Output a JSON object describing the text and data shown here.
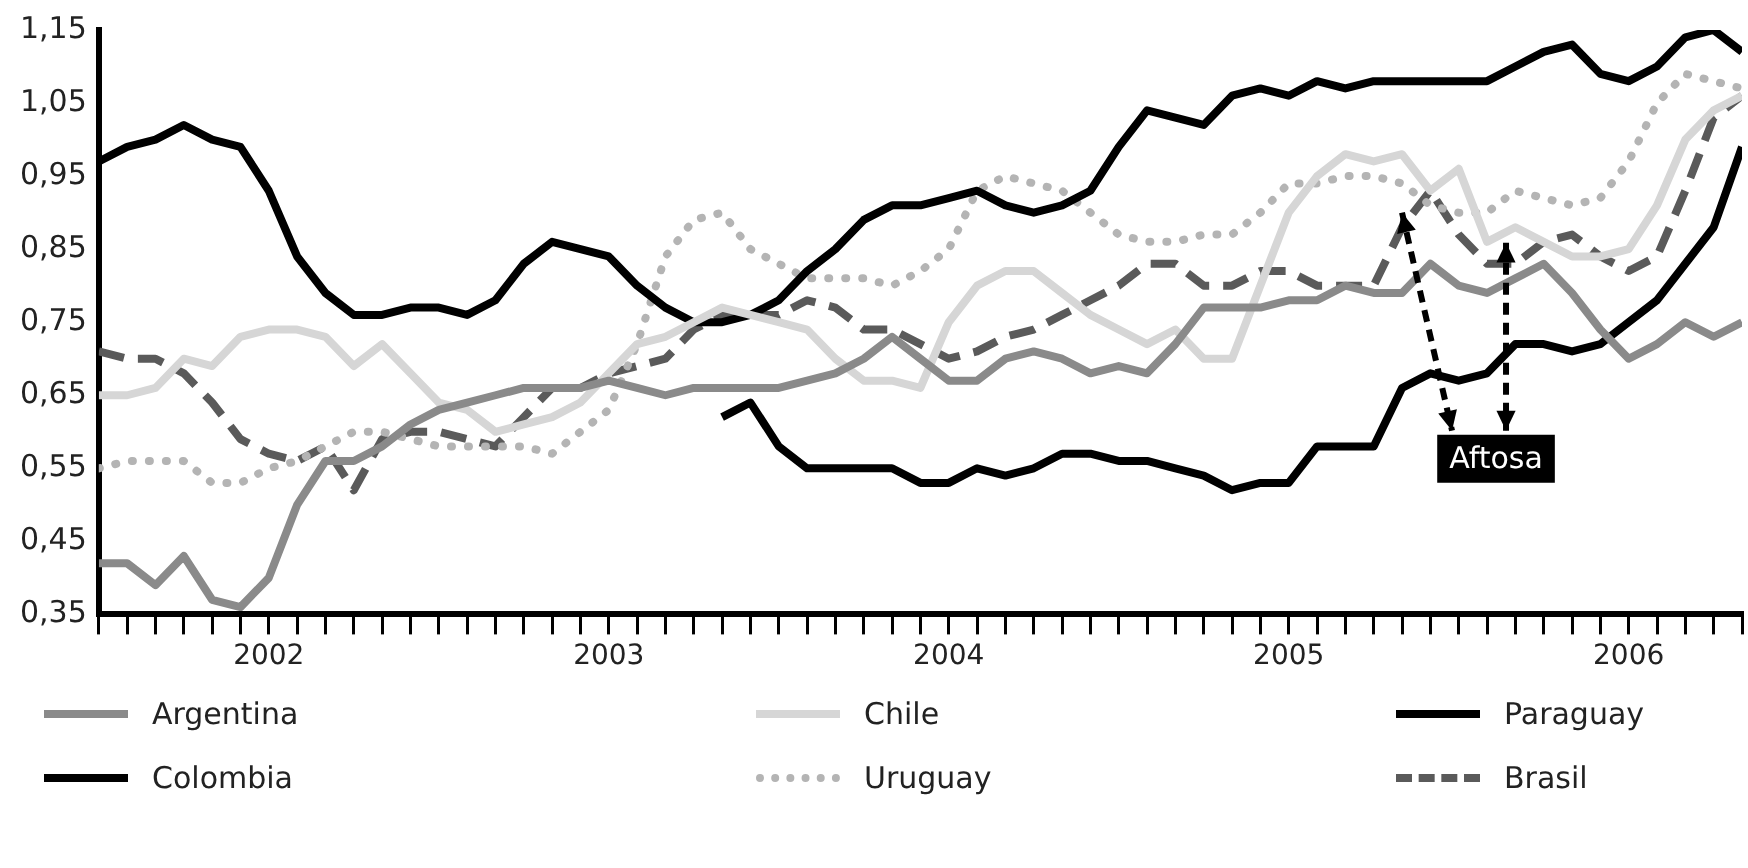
{
  "chart_data": {
    "type": "line",
    "x": [
      "2002-01",
      "2002-02",
      "2002-03",
      "2002-04",
      "2002-05",
      "2002-06",
      "2002-07",
      "2002-08",
      "2002-09",
      "2002-10",
      "2002-11",
      "2002-12",
      "2003-01",
      "2003-02",
      "2003-03",
      "2003-04",
      "2003-05",
      "2003-06",
      "2003-07",
      "2003-08",
      "2003-09",
      "2003-10",
      "2003-11",
      "2003-12",
      "2004-01",
      "2004-02",
      "2004-03",
      "2004-04",
      "2004-05",
      "2004-06",
      "2004-07",
      "2004-08",
      "2004-09",
      "2004-10",
      "2004-11",
      "2004-12",
      "2005-01",
      "2005-02",
      "2005-03",
      "2005-04",
      "2005-05",
      "2005-06",
      "2005-07",
      "2005-08",
      "2005-09",
      "2005-10",
      "2005-11",
      "2005-12",
      "2006-01",
      "2006-02",
      "2006-03",
      "2006-04",
      "2006-05",
      "2006-06",
      "2006-07",
      "2006-08",
      "2006-09",
      "2006-10",
      "2006-11"
    ],
    "series": [
      {
        "name": "Argentina",
        "color": "#8a8a8a",
        "line_style": "solid",
        "values": [
          0.42,
          0.42,
          0.39,
          0.43,
          0.37,
          0.36,
          0.4,
          0.5,
          0.56,
          0.56,
          0.58,
          0.61,
          0.63,
          0.64,
          0.65,
          0.66,
          0.66,
          0.66,
          0.67,
          0.66,
          0.65,
          0.66,
          0.66,
          0.66,
          0.66,
          0.67,
          0.68,
          0.7,
          0.73,
          0.7,
          0.67,
          0.67,
          0.7,
          0.71,
          0.7,
          0.68,
          0.69,
          0.68,
          0.72,
          0.77,
          0.77,
          0.77,
          0.78,
          0.78,
          0.8,
          0.79,
          0.79,
          0.83,
          0.8,
          0.79,
          0.81,
          0.83,
          0.79,
          0.74,
          0.7,
          0.72,
          0.75,
          0.73,
          0.75
        ]
      },
      {
        "name": "Chile",
        "color": "#d6d6d6",
        "line_style": "solid",
        "values": [
          0.65,
          0.65,
          0.66,
          0.7,
          0.69,
          0.73,
          0.74,
          0.74,
          0.73,
          0.69,
          0.72,
          0.68,
          0.64,
          0.63,
          0.6,
          0.61,
          0.62,
          0.64,
          0.68,
          0.72,
          0.73,
          0.75,
          0.77,
          0.76,
          0.75,
          0.74,
          0.7,
          0.67,
          0.67,
          0.66,
          0.75,
          0.8,
          0.82,
          0.82,
          0.79,
          0.76,
          0.74,
          0.72,
          0.74,
          0.7,
          0.7,
          0.8,
          0.9,
          0.95,
          0.98,
          0.97,
          0.98,
          0.93,
          0.96,
          0.86,
          0.88,
          0.86,
          0.84,
          0.84,
          0.85,
          0.91,
          1.0,
          1.04,
          1.06
        ]
      },
      {
        "name": "Paraguay",
        "color": "#000000",
        "line_style": "solid",
        "x": [
          "2003-11",
          "2003-12",
          "2004-01",
          "2004-02",
          "2004-03",
          "2004-04",
          "2004-05",
          "2004-06",
          "2004-07",
          "2004-08",
          "2004-09",
          "2004-10",
          "2004-11",
          "2004-12",
          "2005-01",
          "2005-02",
          "2005-03",
          "2005-04",
          "2005-05",
          "2005-06",
          "2005-07",
          "2005-08",
          "2005-09",
          "2005-10",
          "2005-11",
          "2005-12",
          "2006-01",
          "2006-02",
          "2006-03",
          "2006-04",
          "2006-05",
          "2006-06",
          "2006-07",
          "2006-08",
          "2006-09",
          "2006-10",
          "2006-11"
        ],
        "values": [
          0.62,
          0.64,
          0.58,
          0.55,
          0.55,
          0.55,
          0.55,
          0.53,
          0.53,
          0.55,
          0.54,
          0.55,
          0.57,
          0.57,
          0.56,
          0.56,
          0.55,
          0.54,
          0.52,
          0.53,
          0.53,
          0.58,
          0.58,
          0.58,
          0.66,
          0.68,
          0.67,
          0.68,
          0.72,
          0.72,
          0.71,
          0.72,
          0.75,
          0.78,
          0.83,
          0.88,
          0.99
        ]
      },
      {
        "name": "Colombia",
        "color": "#000000",
        "line_style": "solid",
        "values": [
          0.97,
          0.99,
          1.0,
          1.02,
          1.0,
          0.99,
          0.93,
          0.84,
          0.79,
          0.76,
          0.76,
          0.77,
          0.77,
          0.76,
          0.78,
          0.83,
          0.86,
          0.85,
          0.84,
          0.8,
          0.77,
          0.75,
          0.75,
          0.76,
          0.78,
          0.82,
          0.85,
          0.89,
          0.91,
          0.91,
          0.92,
          0.93,
          0.91,
          0.9,
          0.91,
          0.93,
          0.99,
          1.04,
          1.03,
          1.02,
          1.06,
          1.07,
          1.06,
          1.08,
          1.07,
          1.08,
          1.08,
          1.08,
          1.08,
          1.08,
          1.1,
          1.12,
          1.13,
          1.09,
          1.08,
          1.1,
          1.14,
          1.15,
          1.12
        ]
      },
      {
        "name": "Uruguay",
        "color": "#b4b4b4",
        "line_style": "dotted",
        "values": [
          0.55,
          0.56,
          0.56,
          0.56,
          0.53,
          0.53,
          0.55,
          0.56,
          0.58,
          0.6,
          0.6,
          0.59,
          0.58,
          0.58,
          0.58,
          0.58,
          0.57,
          0.6,
          0.63,
          0.72,
          0.84,
          0.89,
          0.9,
          0.85,
          0.83,
          0.81,
          0.81,
          0.81,
          0.8,
          0.82,
          0.85,
          0.93,
          0.95,
          0.94,
          0.93,
          0.9,
          0.87,
          0.86,
          0.86,
          0.87,
          0.87,
          0.9,
          0.94,
          0.94,
          0.95,
          0.95,
          0.94,
          0.91,
          0.9,
          0.9,
          0.93,
          0.92,
          0.91,
          0.92,
          0.97,
          1.05,
          1.09,
          1.08,
          1.07
        ]
      },
      {
        "name": "Brasil",
        "color": "#5a5a5a",
        "line_style": "dashed",
        "values": [
          0.71,
          0.7,
          0.7,
          0.68,
          0.64,
          0.59,
          0.57,
          0.56,
          0.58,
          0.52,
          0.59,
          0.6,
          0.6,
          0.59,
          0.58,
          0.62,
          0.66,
          0.66,
          0.68,
          0.69,
          0.7,
          0.74,
          0.76,
          0.76,
          0.76,
          0.78,
          0.77,
          0.74,
          0.74,
          0.72,
          0.7,
          0.71,
          0.73,
          0.74,
          0.76,
          0.78,
          0.8,
          0.83,
          0.83,
          0.8,
          0.8,
          0.82,
          0.82,
          0.8,
          0.8,
          0.8,
          0.88,
          0.93,
          0.87,
          0.83,
          0.83,
          0.86,
          0.87,
          0.84,
          0.82,
          0.84,
          0.93,
          1.03,
          1.06
        ]
      }
    ],
    "xlim": [
      "2002-01",
      "2006-11"
    ],
    "xticks": [
      {
        "value": "2002-01",
        "label": null
      },
      {
        "value": "2002-02",
        "label": null
      },
      {
        "value": "2002-03",
        "label": null
      },
      {
        "value": "2002-04",
        "label": null
      },
      {
        "value": "2002-05",
        "label": null
      },
      {
        "value": "2002-06",
        "label": null
      },
      {
        "value": "2002-07",
        "label": "2002"
      },
      {
        "value": "2002-08",
        "label": null
      },
      {
        "value": "2002-09",
        "label": null
      },
      {
        "value": "2002-10",
        "label": null
      },
      {
        "value": "2002-11",
        "label": null
      },
      {
        "value": "2002-12",
        "label": null
      },
      {
        "value": "2003-01",
        "label": null
      },
      {
        "value": "2003-02",
        "label": null
      },
      {
        "value": "2003-03",
        "label": null
      },
      {
        "value": "2003-04",
        "label": null
      },
      {
        "value": "2003-05",
        "label": null
      },
      {
        "value": "2003-06",
        "label": null
      },
      {
        "value": "2003-07",
        "label": "2003"
      },
      {
        "value": "2003-08",
        "label": null
      },
      {
        "value": "2003-09",
        "label": null
      },
      {
        "value": "2003-10",
        "label": null
      },
      {
        "value": "2003-11",
        "label": null
      },
      {
        "value": "2003-12",
        "label": null
      },
      {
        "value": "2004-01",
        "label": null
      },
      {
        "value": "2004-02",
        "label": null
      },
      {
        "value": "2004-03",
        "label": null
      },
      {
        "value": "2004-04",
        "label": null
      },
      {
        "value": "2004-05",
        "label": null
      },
      {
        "value": "2004-06",
        "label": null
      },
      {
        "value": "2004-07",
        "label": "2004"
      },
      {
        "value": "2004-08",
        "label": null
      },
      {
        "value": "2004-09",
        "label": null
      },
      {
        "value": "2004-10",
        "label": null
      },
      {
        "value": "2004-11",
        "label": null
      },
      {
        "value": "2004-12",
        "label": null
      },
      {
        "value": "2005-01",
        "label": null
      },
      {
        "value": "2005-02",
        "label": null
      },
      {
        "value": "2005-03",
        "label": null
      },
      {
        "value": "2005-04",
        "label": null
      },
      {
        "value": "2005-05",
        "label": null
      },
      {
        "value": "2005-06",
        "label": null
      },
      {
        "value": "2005-07",
        "label": "2005"
      },
      {
        "value": "2005-08",
        "label": null
      },
      {
        "value": "2005-09",
        "label": null
      },
      {
        "value": "2005-10",
        "label": null
      },
      {
        "value": "2005-11",
        "label": null
      },
      {
        "value": "2005-12",
        "label": null
      },
      {
        "value": "2006-01",
        "label": null
      },
      {
        "value": "2006-02",
        "label": null
      },
      {
        "value": "2006-03",
        "label": null
      },
      {
        "value": "2006-04",
        "label": null
      },
      {
        "value": "2006-05",
        "label": null
      },
      {
        "value": "2006-06",
        "label": null
      },
      {
        "value": "2006-07",
        "label": "2006"
      },
      {
        "value": "2006-08",
        "label": null
      },
      {
        "value": "2006-09",
        "label": null
      },
      {
        "value": "2006-10",
        "label": null
      },
      {
        "value": "2006-11",
        "label": null
      }
    ],
    "ylim": [
      0.35,
      1.15
    ],
    "yticks": [
      {
        "value": 0.35,
        "label": "0,35"
      },
      {
        "value": 0.45,
        "label": "0,45"
      },
      {
        "value": 0.55,
        "label": "0,55"
      },
      {
        "value": 0.65,
        "label": "0,65"
      },
      {
        "value": 0.75,
        "label": "0,75"
      },
      {
        "value": 0.85,
        "label": "0,85"
      },
      {
        "value": 0.95,
        "label": "0,95"
      },
      {
        "value": 1.05,
        "label": "1,05"
      },
      {
        "value": 1.15,
        "label": "1,15"
      }
    ],
    "annotations": [
      {
        "text": "Aftosa",
        "x": "2005-11",
        "y": 0.9
      }
    ],
    "grid": false,
    "legend": "bottom",
    "marker": "none"
  }
}
